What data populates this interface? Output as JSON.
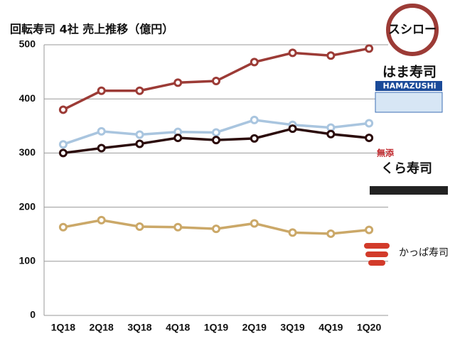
{
  "chart_data": {
    "type": "line",
    "title": "回転寿司 4社 売上推移（億円）",
    "categories": [
      "1Q18",
      "2Q18",
      "3Q18",
      "4Q18",
      "1Q19",
      "2Q19",
      "3Q19",
      "4Q19",
      "1Q20"
    ],
    "series": [
      {
        "name": "スシロー",
        "color": "#9c3b36",
        "values": [
          380,
          415,
          415,
          430,
          433,
          468,
          485,
          480,
          493
        ]
      },
      {
        "name": "はま寿司",
        "subtitle": "HAMAZUSHi",
        "color": "#a9c5df",
        "values": [
          316,
          340,
          334,
          339,
          338,
          361,
          352,
          347,
          355
        ]
      },
      {
        "name": "くら寿司",
        "subtitle": "無添",
        "color": "#2b0b0b",
        "values": [
          300,
          309,
          317,
          328,
          324,
          327,
          345,
          335,
          328
        ]
      },
      {
        "name": "かっぱ寿司",
        "color": "#cba868",
        "values": [
          163,
          176,
          164,
          163,
          160,
          170,
          153,
          151,
          158
        ]
      }
    ],
    "ylim": [
      0,
      500
    ],
    "yticks": [
      0,
      100,
      200,
      300,
      400,
      500
    ],
    "grid": true
  }
}
